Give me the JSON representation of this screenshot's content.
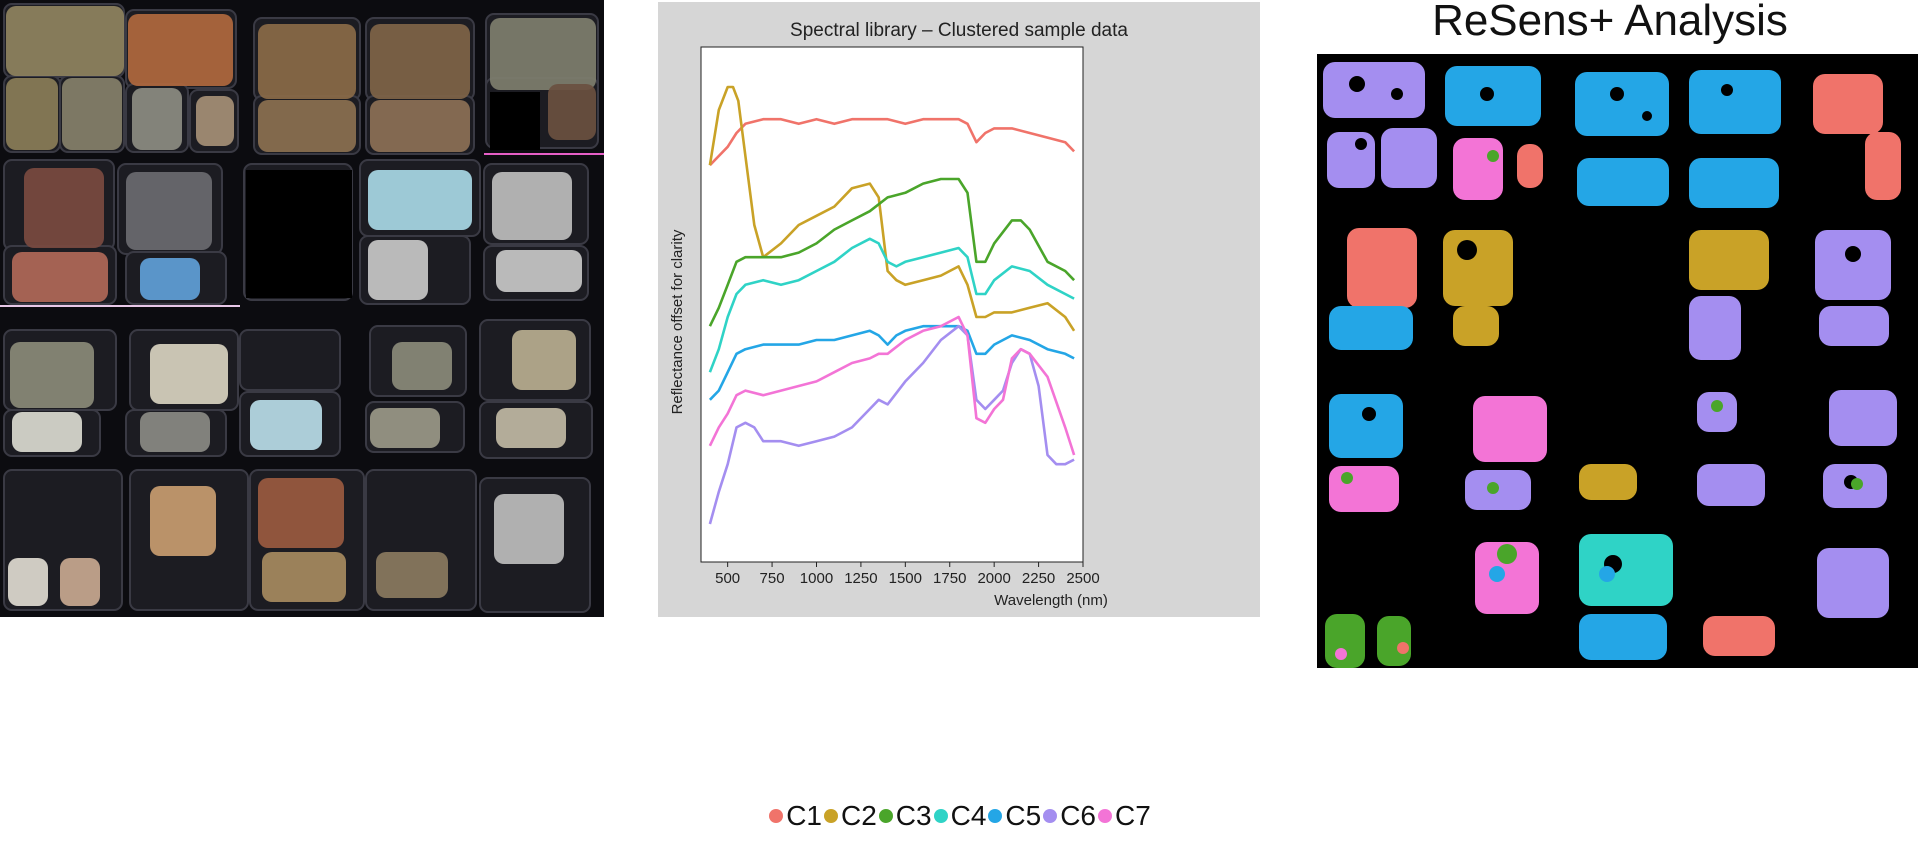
{
  "analysis": {
    "title": "ReSens+ Analysis"
  },
  "colors": {
    "C1": "#f0736a",
    "C2": "#c9a227",
    "C3": "#4aa52a",
    "C4": "#2fd3c6",
    "C5": "#24a6e6",
    "C6": "#a48ef0",
    "C7": "#f374d6",
    "tray": "#1c1c22",
    "tray_border": "#3a3a44"
  },
  "legend": [
    {
      "label": "C1",
      "color": "#f0736a"
    },
    {
      "label": "C2",
      "color": "#c9a227"
    },
    {
      "label": "C3",
      "color": "#4aa52a"
    },
    {
      "label": "C4",
      "color": "#2fd3c6"
    },
    {
      "label": "C5",
      "color": "#24a6e6"
    },
    {
      "label": "C6",
      "color": "#a48ef0"
    },
    {
      "label": "C7",
      "color": "#f374d6"
    }
  ],
  "chart_data": {
    "type": "line",
    "title": "Spectral library – Clustered sample data",
    "xlabel": "Wavelength (nm)",
    "ylabel": "Reflectance offset for clarity",
    "xlim": [
      350,
      2500
    ],
    "ylim": [
      0,
      1
    ],
    "xticks": [
      "500",
      "750",
      "1000",
      "1250",
      "1500",
      "1750",
      "2000",
      "2250",
      "2500"
    ],
    "grid": false,
    "series": [
      {
        "name": "C1",
        "color": "#f0736a",
        "x": [
          400,
          450,
          500,
          550,
          600,
          700,
          800,
          900,
          1000,
          1100,
          1200,
          1300,
          1400,
          1500,
          1600,
          1700,
          1800,
          1850,
          1900,
          1950,
          2000,
          2100,
          2200,
          2300,
          2400,
          2450
        ],
        "y": [
          0.83,
          0.85,
          0.87,
          0.9,
          0.92,
          0.93,
          0.93,
          0.92,
          0.93,
          0.92,
          0.93,
          0.93,
          0.93,
          0.92,
          0.93,
          0.93,
          0.93,
          0.92,
          0.88,
          0.9,
          0.91,
          0.91,
          0.9,
          0.89,
          0.88,
          0.86
        ]
      },
      {
        "name": "C2",
        "color": "#c9a227",
        "x": [
          400,
          450,
          500,
          530,
          560,
          600,
          650,
          700,
          800,
          900,
          1000,
          1100,
          1200,
          1300,
          1350,
          1400,
          1450,
          1500,
          1600,
          1700,
          1800,
          1850,
          1900,
          1950,
          2000,
          2100,
          2200,
          2300,
          2400,
          2450
        ],
        "y": [
          0.83,
          0.95,
          1.0,
          1.0,
          0.97,
          0.85,
          0.7,
          0.63,
          0.66,
          0.7,
          0.72,
          0.74,
          0.78,
          0.79,
          0.76,
          0.6,
          0.58,
          0.57,
          0.58,
          0.59,
          0.61,
          0.57,
          0.5,
          0.5,
          0.51,
          0.51,
          0.52,
          0.53,
          0.5,
          0.47
        ]
      },
      {
        "name": "C3",
        "color": "#4aa52a",
        "x": [
          400,
          450,
          500,
          550,
          600,
          700,
          800,
          900,
          1000,
          1100,
          1200,
          1300,
          1400,
          1500,
          1600,
          1700,
          1800,
          1850,
          1900,
          1950,
          2000,
          2100,
          2150,
          2200,
          2300,
          2400,
          2450
        ],
        "y": [
          0.48,
          0.52,
          0.57,
          0.62,
          0.63,
          0.63,
          0.63,
          0.64,
          0.66,
          0.69,
          0.71,
          0.73,
          0.76,
          0.77,
          0.79,
          0.8,
          0.8,
          0.77,
          0.62,
          0.62,
          0.66,
          0.71,
          0.71,
          0.69,
          0.62,
          0.6,
          0.58
        ]
      },
      {
        "name": "C4",
        "color": "#2fd3c6",
        "x": [
          400,
          450,
          500,
          550,
          600,
          700,
          800,
          900,
          1000,
          1100,
          1200,
          1300,
          1350,
          1400,
          1450,
          1500,
          1600,
          1700,
          1800,
          1850,
          1900,
          1950,
          2000,
          2100,
          2200,
          2300,
          2400,
          2450
        ],
        "y": [
          0.38,
          0.43,
          0.5,
          0.55,
          0.57,
          0.58,
          0.57,
          0.58,
          0.6,
          0.62,
          0.65,
          0.67,
          0.66,
          0.62,
          0.61,
          0.62,
          0.63,
          0.64,
          0.65,
          0.63,
          0.55,
          0.55,
          0.58,
          0.61,
          0.6,
          0.57,
          0.55,
          0.54
        ]
      },
      {
        "name": "C5",
        "color": "#24a6e6",
        "x": [
          400,
          450,
          500,
          550,
          600,
          700,
          800,
          900,
          1000,
          1100,
          1200,
          1300,
          1350,
          1400,
          1450,
          1500,
          1600,
          1700,
          1800,
          1850,
          1900,
          1950,
          2000,
          2100,
          2200,
          2300,
          2400,
          2450
        ],
        "y": [
          0.32,
          0.34,
          0.38,
          0.42,
          0.43,
          0.44,
          0.44,
          0.44,
          0.45,
          0.45,
          0.46,
          0.47,
          0.46,
          0.44,
          0.46,
          0.47,
          0.48,
          0.48,
          0.48,
          0.47,
          0.42,
          0.42,
          0.44,
          0.46,
          0.45,
          0.43,
          0.42,
          0.41
        ]
      },
      {
        "name": "C6",
        "color": "#a48ef0",
        "x": [
          400,
          450,
          500,
          550,
          600,
          650,
          700,
          800,
          900,
          1000,
          1100,
          1200,
          1300,
          1350,
          1400,
          1500,
          1600,
          1700,
          1800,
          1850,
          1900,
          1950,
          2000,
          2050,
          2100,
          2150,
          2200,
          2250,
          2300,
          2350,
          2400,
          2450
        ],
        "y": [
          0.05,
          0.12,
          0.18,
          0.26,
          0.27,
          0.26,
          0.23,
          0.23,
          0.22,
          0.23,
          0.24,
          0.26,
          0.3,
          0.32,
          0.31,
          0.36,
          0.4,
          0.45,
          0.48,
          0.46,
          0.32,
          0.3,
          0.32,
          0.34,
          0.4,
          0.43,
          0.42,
          0.35,
          0.2,
          0.18,
          0.18,
          0.19
        ]
      },
      {
        "name": "C7",
        "color": "#f374d6",
        "x": [
          400,
          450,
          500,
          550,
          600,
          700,
          800,
          900,
          1000,
          1100,
          1200,
          1300,
          1350,
          1400,
          1500,
          1600,
          1700,
          1800,
          1850,
          1900,
          1950,
          2000,
          2050,
          2100,
          2150,
          2200,
          2300,
          2400,
          2450
        ],
        "y": [
          0.22,
          0.26,
          0.29,
          0.33,
          0.34,
          0.33,
          0.34,
          0.35,
          0.36,
          0.38,
          0.4,
          0.41,
          0.42,
          0.42,
          0.45,
          0.47,
          0.48,
          0.5,
          0.46,
          0.28,
          0.27,
          0.3,
          0.32,
          0.41,
          0.43,
          0.42,
          0.37,
          0.26,
          0.2
        ]
      }
    ]
  }
}
